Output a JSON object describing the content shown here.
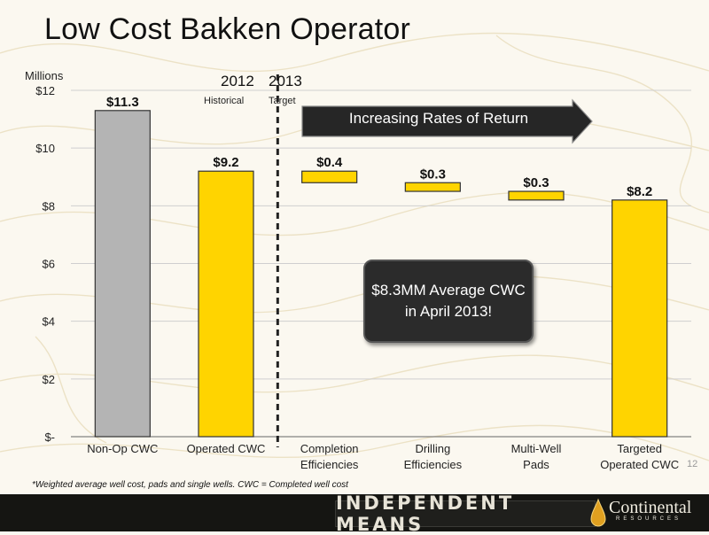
{
  "slide": {
    "title": "Low Cost Bakken Operator",
    "page_number": "12",
    "footnote": "*Weighted average well cost, pads and single wells.  CWC = Completed well cost",
    "footer_tagline": "INDEPENDENT MEANS",
    "logo_text": "Continental",
    "logo_sub": "RESOURCES"
  },
  "annotations": {
    "year_left": "2012",
    "year_left_sub": "Historical",
    "year_right": "2013",
    "year_right_sub": "Target",
    "arrow_label": "Increasing Rates of Return",
    "callout": "$8.3MM Average CWC in April 2013!"
  },
  "colors": {
    "gold": "#FFD400",
    "gray": "#B4B4B4",
    "arrow": "#2a2a2a",
    "callout_bg": "#2b2b2b"
  },
  "chart_data": {
    "type": "bar",
    "subtype": "waterfall",
    "ylabel": "Millions",
    "ylim": [
      0,
      12
    ],
    "yticks": [
      0,
      2,
      4,
      6,
      8,
      10,
      12
    ],
    "ytick_labels": [
      "$-",
      "$2",
      "$4",
      "$6",
      "$8",
      "$10",
      "$12"
    ],
    "grid": true,
    "categories": [
      [
        "Non-Op CWC"
      ],
      [
        "Operated CWC"
      ],
      [
        "Completion",
        "Efficiencies"
      ],
      [
        "Drilling",
        "Efficiencies"
      ],
      [
        "Multi-Well",
        "Pads"
      ],
      [
        "Targeted",
        "Operated CWC"
      ]
    ],
    "bars": [
      {
        "low": 0,
        "high": 11.3,
        "label": "$11.3",
        "color": "gray"
      },
      {
        "low": 0,
        "high": 9.2,
        "label": "$9.2",
        "color": "gold"
      },
      {
        "low": 8.8,
        "high": 9.2,
        "label": "$0.4",
        "color": "gold"
      },
      {
        "low": 8.5,
        "high": 8.8,
        "label": "$0.3",
        "color": "gold"
      },
      {
        "low": 8.2,
        "high": 8.5,
        "label": "$0.3",
        "color": "gold"
      },
      {
        "low": 0,
        "high": 8.2,
        "label": "$8.2",
        "color": "gold"
      }
    ]
  }
}
